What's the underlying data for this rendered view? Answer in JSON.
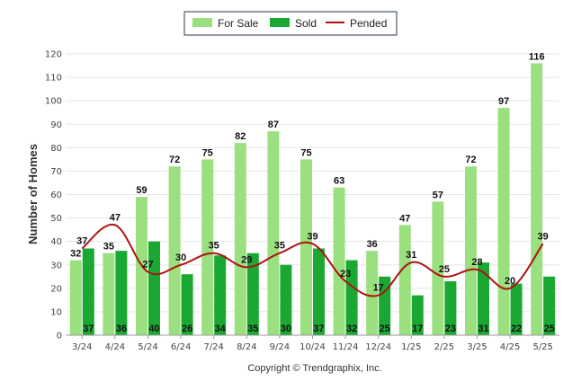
{
  "chart_data": {
    "type": "bar",
    "categories": [
      "3/24",
      "4/24",
      "5/24",
      "6/24",
      "7/24",
      "8/24",
      "9/24",
      "10/24",
      "11/24",
      "12/24",
      "1/25",
      "2/25",
      "3/25",
      "4/25",
      "5/25"
    ],
    "series": [
      {
        "name": "For Sale",
        "type": "bar",
        "color": "#9be07f",
        "values": [
          32,
          35,
          59,
          72,
          75,
          82,
          87,
          75,
          63,
          36,
          47,
          57,
          72,
          97,
          116
        ]
      },
      {
        "name": "Sold",
        "type": "bar",
        "color": "#1aa833",
        "values": [
          37,
          36,
          40,
          26,
          34,
          35,
          30,
          37,
          32,
          25,
          17,
          23,
          31,
          22,
          25
        ]
      },
      {
        "name": "Pended",
        "type": "line",
        "color": "#b01010",
        "values": [
          37,
          47,
          27,
          30,
          35,
          29,
          35,
          39,
          23,
          17,
          31,
          25,
          28,
          20,
          39
        ]
      }
    ],
    "title": "",
    "xlabel": "",
    "ylabel": "Number of Homes",
    "ylim": [
      0,
      120
    ],
    "yticks": [
      0,
      10,
      20,
      30,
      40,
      50,
      60,
      70,
      80,
      90,
      100,
      110,
      120
    ],
    "grid": true,
    "legend_position": "top-center"
  },
  "footer": {
    "copyright": "Copyright © Trendgraphix, Inc."
  }
}
